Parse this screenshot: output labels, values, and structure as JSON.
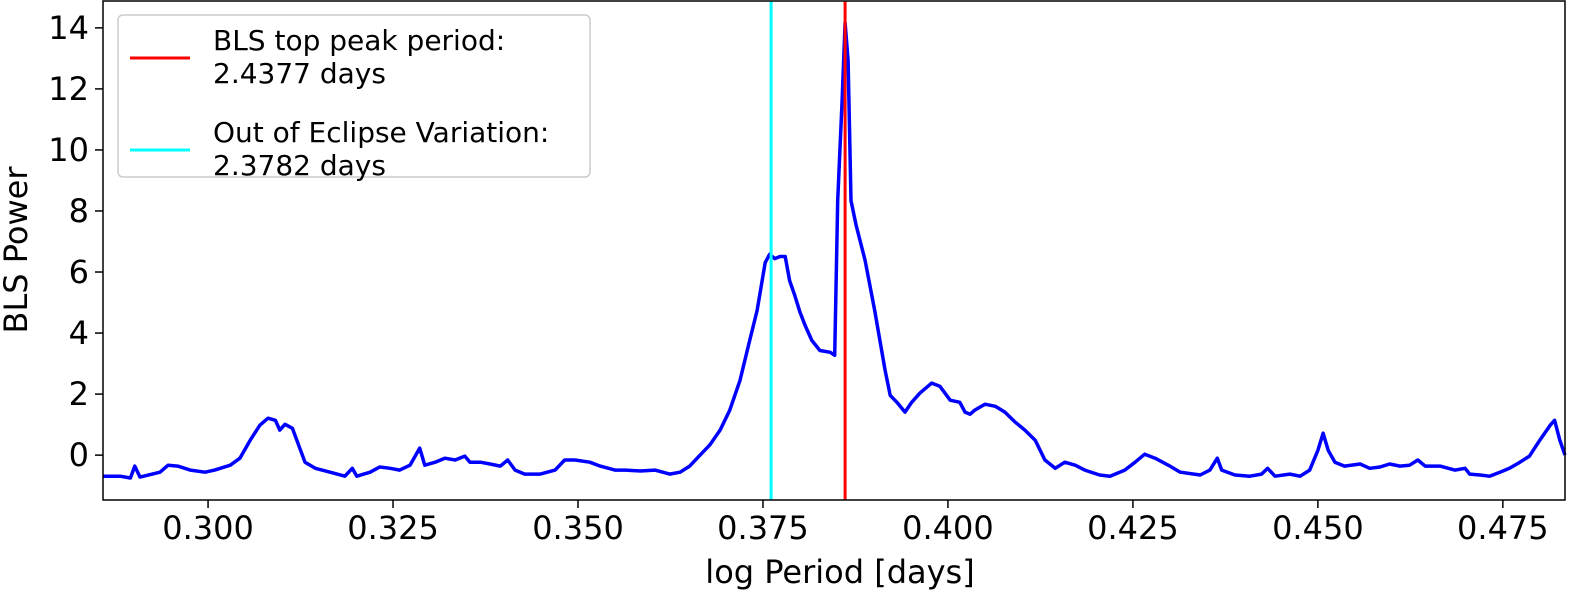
{
  "chart_data": {
    "type": "line",
    "x_label": "log Period [days]",
    "y_label": "BLS Power",
    "xlim": [
      0.2858,
      0.4834
    ],
    "ylim": [
      -1.47,
      14.88
    ],
    "xticks": [
      {
        "value": 0.3,
        "label": "0.300"
      },
      {
        "value": 0.325,
        "label": "0.325"
      },
      {
        "value": 0.35,
        "label": "0.350"
      },
      {
        "value": 0.375,
        "label": "0.375"
      },
      {
        "value": 0.4,
        "label": "0.400"
      },
      {
        "value": 0.425,
        "label": "0.425"
      },
      {
        "value": 0.45,
        "label": "0.450"
      },
      {
        "value": 0.475,
        "label": "0.475"
      }
    ],
    "yticks": [
      0,
      2,
      4,
      6,
      8,
      10,
      12,
      14
    ],
    "grid": false,
    "legend": "upper left",
    "vlines": [
      {
        "name": "BLS top peak period:\n2.4377   days",
        "color": "#ff0000",
        "x": 0.3861
      },
      {
        "name": "Out of Eclipse Variation:\n2.3782   days",
        "color": "#00ffff",
        "x": 0.3761
      }
    ],
    "series": [
      {
        "color": "#0000ff",
        "x": [
          0.2858,
          0.2881,
          0.2895,
          0.2901,
          0.2908,
          0.2935,
          0.2946,
          0.2959,
          0.2976,
          0.2996,
          0.3009,
          0.303,
          0.3043,
          0.3057,
          0.307,
          0.3081,
          0.3091,
          0.3097,
          0.3104,
          0.3114,
          0.312,
          0.3131,
          0.3145,
          0.3165,
          0.3185,
          0.3195,
          0.3201,
          0.3219,
          0.3232,
          0.3246,
          0.3259,
          0.3273,
          0.3286,
          0.3293,
          0.3307,
          0.332,
          0.3334,
          0.3347,
          0.3354,
          0.3368,
          0.3381,
          0.3395,
          0.3405,
          0.3415,
          0.3428,
          0.3449,
          0.3469,
          0.3482,
          0.3496,
          0.3516,
          0.353,
          0.355,
          0.3564,
          0.3584,
          0.3604,
          0.3624,
          0.3638,
          0.3651,
          0.3665,
          0.3678,
          0.3692,
          0.3705,
          0.3719,
          0.3732,
          0.3742,
          0.3753,
          0.3759,
          0.3766,
          0.3773,
          0.378,
          0.3786,
          0.3793,
          0.38,
          0.3807,
          0.3816,
          0.3827,
          0.3841,
          0.3847,
          0.3851,
          0.3857,
          0.3861,
          0.3865,
          0.3869,
          0.3876,
          0.3888,
          0.3901,
          0.3915,
          0.3922,
          0.3931,
          0.3942,
          0.3951,
          0.3962,
          0.3978,
          0.3989,
          0.4003,
          0.4016,
          0.4023,
          0.403,
          0.4036,
          0.405,
          0.4064,
          0.4077,
          0.4091,
          0.4104,
          0.4118,
          0.4131,
          0.4145,
          0.4158,
          0.4172,
          0.4185,
          0.4205,
          0.4219,
          0.4239,
          0.4253,
          0.4266,
          0.428,
          0.43,
          0.4314,
          0.4341,
          0.4354,
          0.4364,
          0.437,
          0.4388,
          0.4408,
          0.4424,
          0.4432,
          0.4442,
          0.4462,
          0.4476,
          0.4489,
          0.45,
          0.4507,
          0.4514,
          0.4523,
          0.4536,
          0.4557,
          0.457,
          0.4584,
          0.4597,
          0.4611,
          0.4624,
          0.4635,
          0.4645,
          0.4665,
          0.4685,
          0.4699,
          0.4705,
          0.4719,
          0.4732,
          0.4746,
          0.4759,
          0.4773,
          0.4786,
          0.48,
          0.4814,
          0.482,
          0.4827,
          0.4834
        ],
        "values": [
          -0.69,
          -0.69,
          -0.75,
          -0.36,
          -0.72,
          -0.56,
          -0.33,
          -0.36,
          -0.49,
          -0.56,
          -0.49,
          -0.33,
          -0.1,
          0.49,
          0.98,
          1.21,
          1.14,
          0.82,
          1.01,
          0.88,
          0.49,
          -0.23,
          -0.43,
          -0.56,
          -0.69,
          -0.43,
          -0.69,
          -0.56,
          -0.39,
          -0.43,
          -0.49,
          -0.33,
          0.23,
          -0.33,
          -0.23,
          -0.1,
          -0.16,
          -0.03,
          -0.23,
          -0.23,
          -0.29,
          -0.36,
          -0.16,
          -0.49,
          -0.62,
          -0.62,
          -0.49,
          -0.16,
          -0.16,
          -0.23,
          -0.36,
          -0.49,
          -0.49,
          -0.52,
          -0.49,
          -0.62,
          -0.56,
          -0.36,
          0,
          0.33,
          0.82,
          1.47,
          2.45,
          3.76,
          4.74,
          6.31,
          6.58,
          6.44,
          6.51,
          6.51,
          5.72,
          5.23,
          4.68,
          4.25,
          3.76,
          3.43,
          3.37,
          3.27,
          8.34,
          11.61,
          14.16,
          12.92,
          8.34,
          7.52,
          6.38,
          4.74,
          2.78,
          1.96,
          1.73,
          1.41,
          1.73,
          2.03,
          2.36,
          2.26,
          1.8,
          1.73,
          1.41,
          1.34,
          1.47,
          1.67,
          1.6,
          1.41,
          1.08,
          0.82,
          0.49,
          -0.16,
          -0.43,
          -0.23,
          -0.33,
          -0.49,
          -0.65,
          -0.69,
          -0.49,
          -0.23,
          0.03,
          -0.1,
          -0.36,
          -0.56,
          -0.65,
          -0.49,
          -0.1,
          -0.49,
          -0.65,
          -0.69,
          -0.62,
          -0.43,
          -0.69,
          -0.62,
          -0.69,
          -0.49,
          0.16,
          0.72,
          0.16,
          -0.23,
          -0.36,
          -0.29,
          -0.43,
          -0.39,
          -0.29,
          -0.36,
          -0.33,
          -0.16,
          -0.36,
          -0.36,
          -0.49,
          -0.43,
          -0.62,
          -0.65,
          -0.69,
          -0.56,
          -0.43,
          -0.23,
          -0.03,
          0.49,
          0.98,
          1.14,
          0.49,
          0
        ]
      }
    ]
  }
}
